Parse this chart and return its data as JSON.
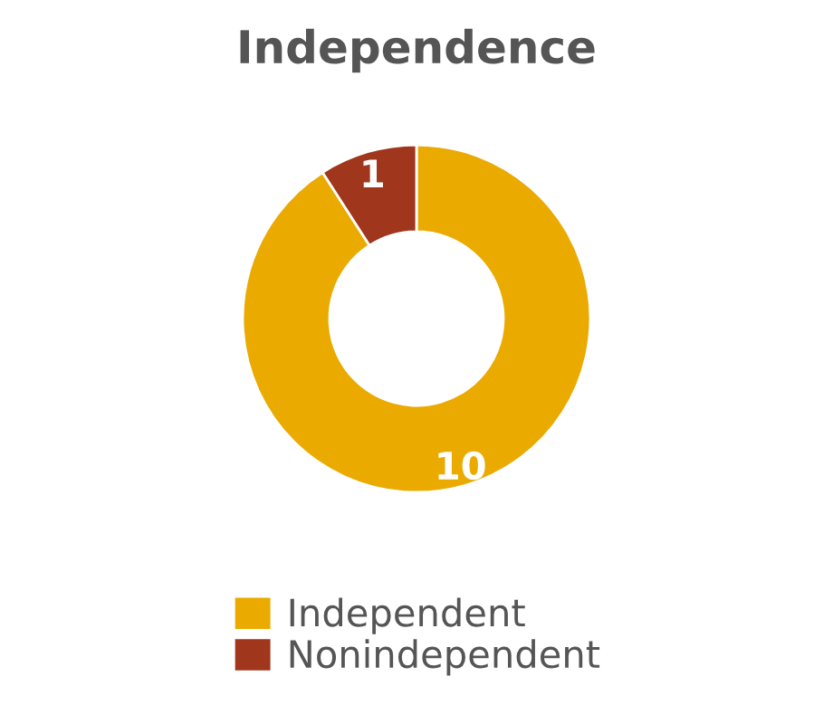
{
  "chart_data": {
    "type": "donut",
    "title": "Independence",
    "categories": [
      "Independent",
      "Nonindependent"
    ],
    "values": [
      10,
      1
    ],
    "colors": [
      "#eaaa00",
      "#a0361c"
    ],
    "data_labels": true,
    "legend": "bottom"
  }
}
